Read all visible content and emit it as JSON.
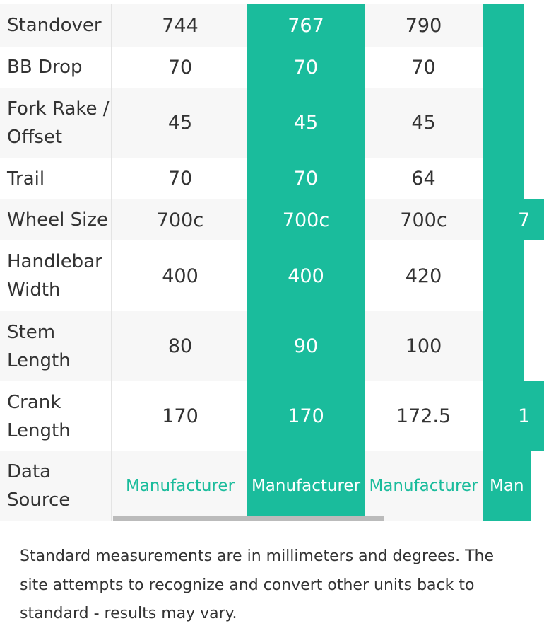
{
  "table": {
    "rows": [
      {
        "label": "Standover",
        "cells": [
          "744",
          "767",
          "790"
        ]
      },
      {
        "label": "BB Drop",
        "cells": [
          "70",
          "70",
          "70"
        ]
      },
      {
        "label": "Fork Rake / Offset",
        "cells": [
          "45",
          "45",
          "45"
        ]
      },
      {
        "label": "Trail",
        "cells": [
          "70",
          "70",
          "64"
        ]
      },
      {
        "label": "Wheel Size",
        "cells": [
          "700c",
          "700c",
          "700c",
          "7"
        ]
      },
      {
        "label": "Handlebar Width",
        "cells": [
          "400",
          "400",
          "420"
        ]
      },
      {
        "label": "Stem Length",
        "cells": [
          "80",
          "90",
          "100"
        ]
      },
      {
        "label": "Crank Length",
        "cells": [
          "170",
          "170",
          "172.5",
          "1"
        ]
      },
      {
        "label": "Data Source",
        "cells": [
          "Manufacturer",
          "Manufacturer",
          "Manufacturer",
          "Man"
        ]
      }
    ]
  },
  "footnote": "Standard measurements are in millimeters and degrees. The site attempts to recognize and convert other units back to standard - results may vary."
}
